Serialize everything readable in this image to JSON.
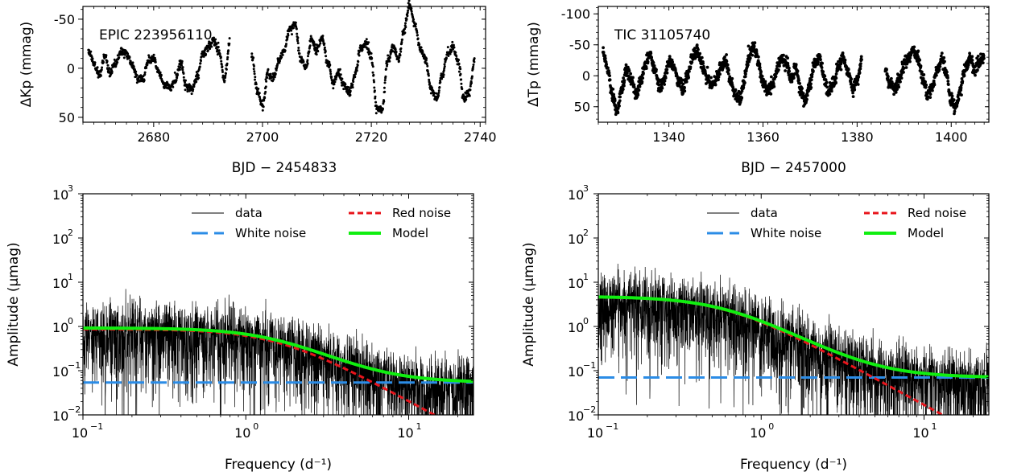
{
  "chart_data": [
    {
      "id": "lc1",
      "type": "scatter",
      "annotation": "EPIC 223956110",
      "xlabel": "BJD − 2454833",
      "ylabel": "ΔKp (mmag)",
      "xlim": [
        2667,
        2741
      ],
      "ylim": [
        55,
        -63
      ],
      "inverted_y": true,
      "xticks": [
        2680,
        2700,
        2720,
        2740
      ],
      "yticks": [
        -50,
        0,
        50
      ],
      "series": [
        {
          "values_x": [
            2668,
            2669,
            2670,
            2671,
            2672,
            2673,
            2674,
            2675,
            2676,
            2677,
            2678,
            2679,
            2680,
            2681,
            2682,
            2683,
            2684,
            2685,
            2686,
            2687,
            2688,
            2689,
            2690,
            2691,
            2692,
            2693,
            2694,
            2698,
            2699,
            2700,
            2701,
            2702,
            2703,
            2704,
            2705,
            2706,
            2707,
            2708,
            2709,
            2710,
            2711,
            2712,
            2713,
            2714,
            2715,
            2716,
            2717,
            2718,
            2719,
            2720,
            2721,
            2722,
            2723,
            2724,
            2725,
            2726,
            2727,
            2728,
            2729,
            2730,
            2731,
            2732,
            2733,
            2734,
            2735,
            2736,
            2737,
            2738,
            2739
          ],
          "values_y": [
            -18,
            -5,
            8,
            -12,
            5,
            -5,
            -18,
            -15,
            -5,
            10,
            12,
            -8,
            -10,
            5,
            18,
            20,
            12,
            -5,
            18,
            22,
            8,
            -15,
            -20,
            -28,
            -18,
            12,
            -25,
            -15,
            22,
            38,
            5,
            10,
            -8,
            -18,
            -40,
            -45,
            -10,
            -2,
            -30,
            -18,
            -32,
            -5,
            15,
            5,
            18,
            25,
            8,
            -20,
            -25,
            -10,
            40,
            42,
            -8,
            -22,
            -10,
            -38,
            -65,
            -45,
            -20,
            -8,
            22,
            32,
            8,
            -15,
            -22,
            -5,
            32,
            25,
            -10
          ]
        }
      ]
    },
    {
      "id": "lc2",
      "type": "scatter",
      "annotation": "TIC 31105740",
      "xlabel": "BJD − 2457000",
      "ylabel": "ΔTp (mmag)",
      "xlim": [
        1325,
        1408
      ],
      "ylim": [
        75,
        -112
      ],
      "inverted_y": true,
      "xticks": [
        1340,
        1360,
        1380,
        1400
      ],
      "yticks": [
        -100,
        -50,
        0,
        50
      ],
      "series": [
        {
          "values_x": [
            1326,
            1327,
            1328,
            1329,
            1330,
            1331,
            1332,
            1333,
            1334,
            1335,
            1336,
            1337,
            1338,
            1339,
            1340,
            1341,
            1342,
            1343,
            1344,
            1345,
            1346,
            1347,
            1348,
            1349,
            1350,
            1351,
            1352,
            1353,
            1354,
            1355,
            1356,
            1357,
            1358,
            1359,
            1360,
            1361,
            1362,
            1363,
            1364,
            1365,
            1366,
            1367,
            1368,
            1369,
            1370,
            1371,
            1372,
            1373,
            1374,
            1375,
            1376,
            1377,
            1378,
            1379,
            1380,
            1381,
            1386,
            1387,
            1388,
            1389,
            1390,
            1391,
            1392,
            1393,
            1394,
            1395,
            1396,
            1397,
            1398,
            1399,
            1400,
            1401,
            1402,
            1403,
            1404,
            1405,
            1406,
            1407
          ],
          "values_y": [
            -40,
            -10,
            30,
            55,
            20,
            -10,
            5,
            30,
            10,
            -20,
            -35,
            -10,
            20,
            5,
            -25,
            -15,
            10,
            20,
            0,
            -30,
            -40,
            -20,
            0,
            15,
            10,
            -15,
            -25,
            5,
            30,
            40,
            10,
            -30,
            -50,
            -20,
            10,
            25,
            15,
            -10,
            -30,
            -20,
            5,
            -15,
            25,
            40,
            10,
            -20,
            -30,
            5,
            25,
            15,
            -15,
            -30,
            -10,
            20,
            5,
            -25,
            -10,
            15,
            20,
            5,
            -20,
            -30,
            -40,
            -25,
            5,
            30,
            20,
            -10,
            -25,
            -5,
            40,
            50,
            20,
            -15,
            -30,
            -10,
            -25,
            -30
          ]
        }
      ]
    },
    {
      "id": "ps1",
      "type": "line",
      "xlabel": "Frequency (d⁻¹)",
      "ylabel": "Amplitude (μmag)",
      "xscale": "log",
      "yscale": "log",
      "xlim": [
        0.1,
        25
      ],
      "ylim": [
        0.01,
        1000
      ],
      "xticks": [
        0.1,
        1,
        10
      ],
      "yticks": [
        0.01,
        0.1,
        1,
        10,
        100,
        1000
      ],
      "legend": [
        "data",
        "Red noise",
        "White noise",
        "Model"
      ],
      "model": {
        "A": 0.87,
        "fc": 1.55,
        "W": 0.054
      }
    },
    {
      "id": "ps2",
      "type": "line",
      "xlabel": "Frequency (d⁻¹)",
      "ylabel": "Amplitude (μmag)",
      "xscale": "log",
      "yscale": "log",
      "xlim": [
        0.1,
        25
      ],
      "ylim": [
        0.01,
        1000
      ],
      "xticks": [
        0.1,
        1,
        10
      ],
      "yticks": [
        0.01,
        0.1,
        1,
        10,
        100,
        1000
      ],
      "legend": [
        "data",
        "Red noise",
        "White noise",
        "Model"
      ],
      "model": {
        "A": 4.7,
        "fc": 0.6,
        "W": 0.07
      }
    }
  ],
  "tick_text": {
    "lc1x": [
      "2680",
      "2700",
      "2720",
      "2740"
    ],
    "lc1y": [
      "-50",
      "0",
      "50"
    ],
    "lc2x": [
      "1340",
      "1360",
      "1380",
      "1400"
    ],
    "lc2y": [
      "-100",
      "-50",
      "0",
      "50"
    ],
    "ps_y_mant": [
      "10",
      "10",
      "10",
      "10",
      "10",
      "10"
    ],
    "ps_y_exp": [
      "−2",
      "−1",
      "0",
      "1",
      "2",
      "3"
    ],
    "ps_x_mant": [
      "10",
      "10",
      "10"
    ],
    "ps_x_exp": [
      "−1",
      "0",
      "1"
    ]
  },
  "legend_labels": {
    "data": "data",
    "red": "Red noise",
    "white": "White noise",
    "model": "Model"
  },
  "colors": {
    "data": "#000000",
    "red_noise": "#e8141b",
    "white_noise": "#2b8ce6",
    "model": "#10ee10"
  }
}
